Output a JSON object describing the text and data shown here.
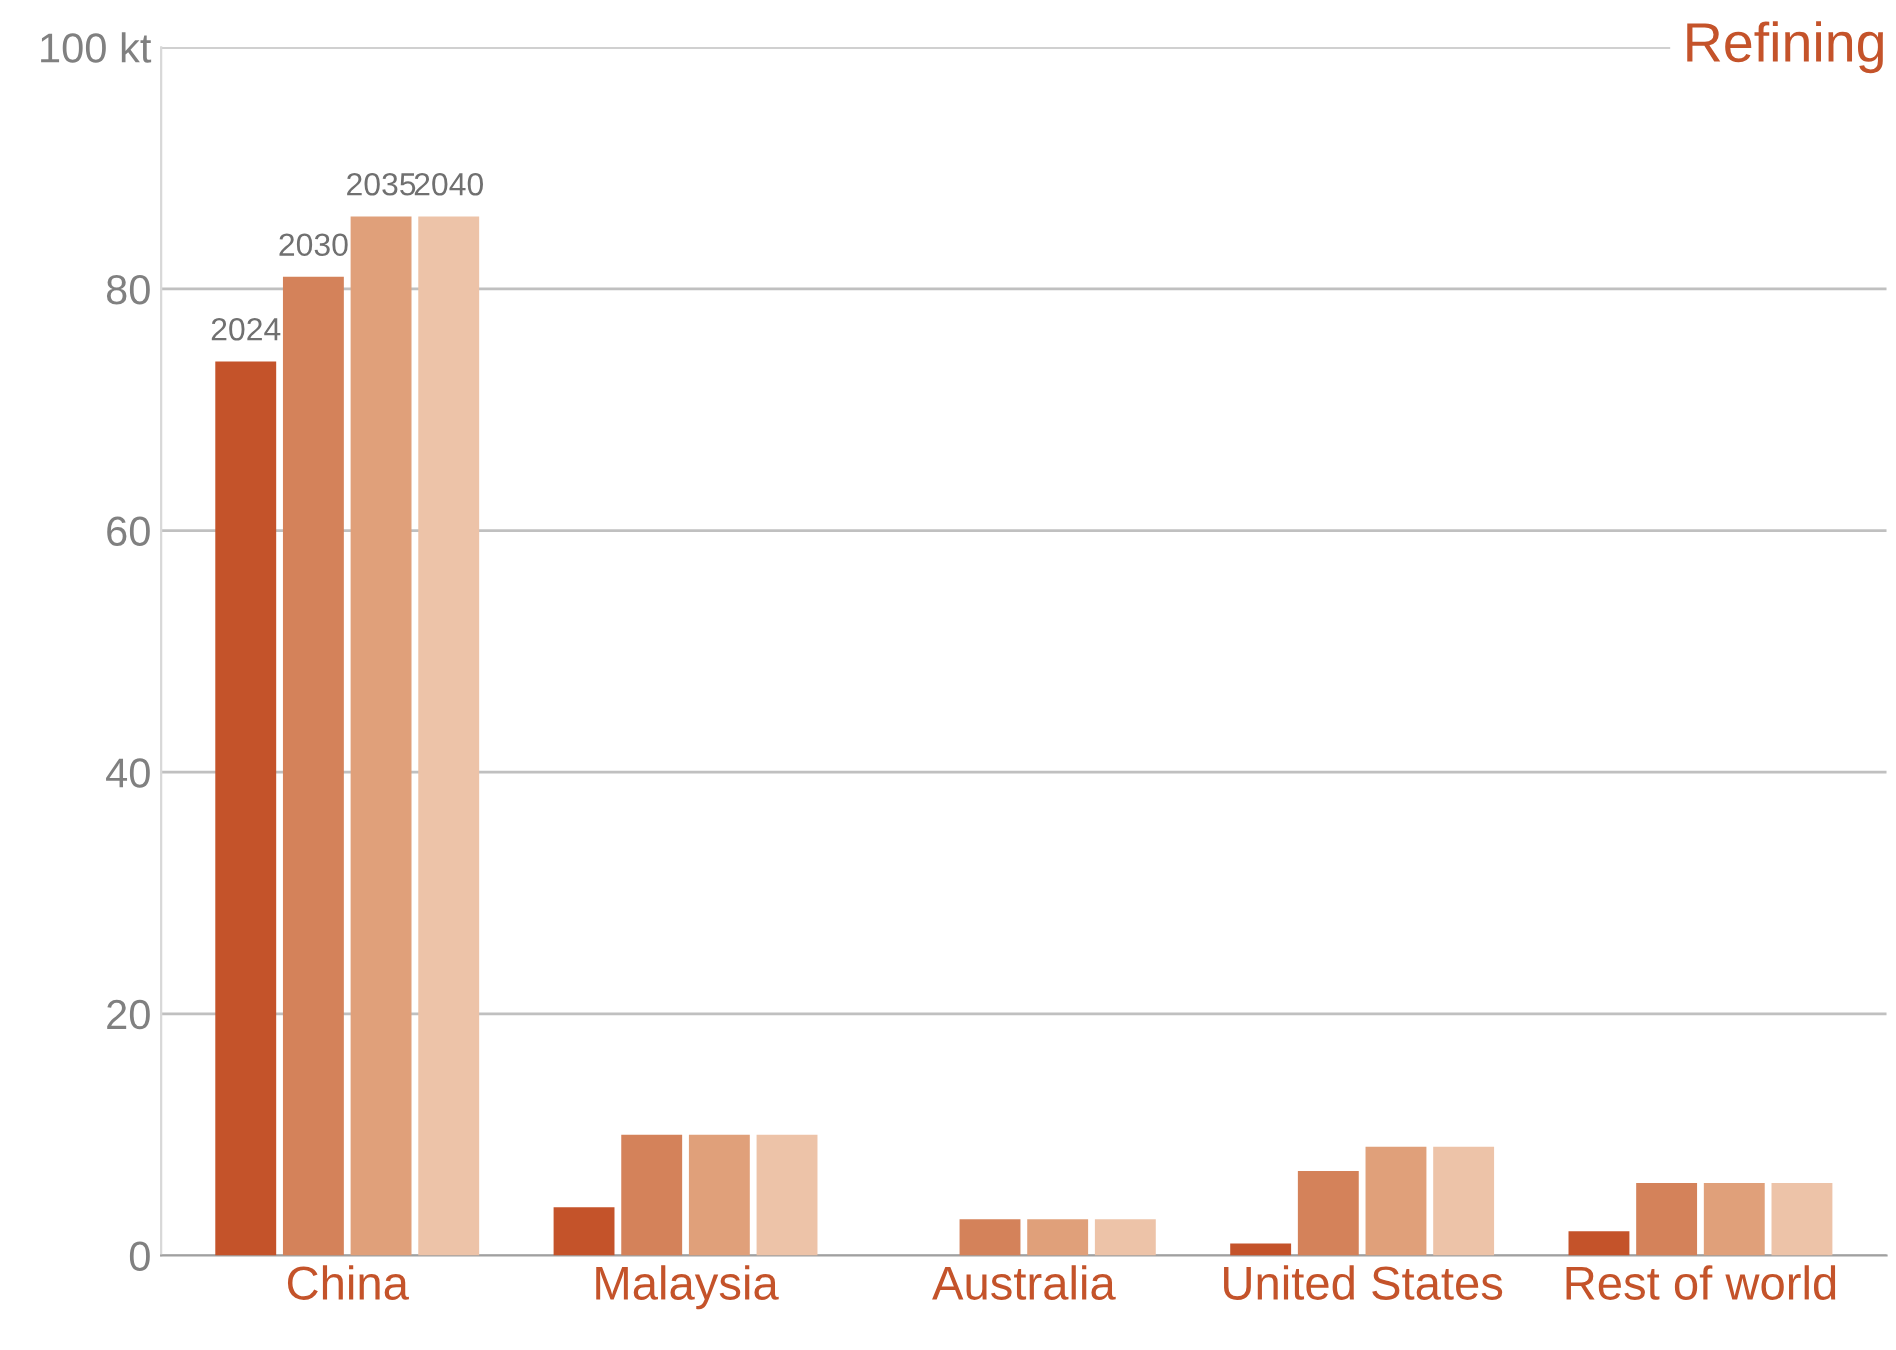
{
  "chart_data": {
    "type": "bar",
    "title": "Refining",
    "categories": [
      "China",
      "Malaysia",
      "Australia",
      "United States",
      "Rest of world"
    ],
    "series": [
      {
        "name": "2024",
        "color": "#c4532a",
        "values": [
          74,
          4,
          null,
          1,
          2
        ]
      },
      {
        "name": "2030",
        "color": "#d4825a",
        "values": [
          81,
          10,
          3,
          7,
          6
        ]
      },
      {
        "name": "2035",
        "color": "#e0a07a",
        "values": [
          86,
          10,
          3,
          9,
          6
        ]
      },
      {
        "name": "2040",
        "color": "#edc3a8",
        "values": [
          86,
          10,
          3,
          9,
          6
        ]
      }
    ],
    "ylim": [
      0,
      100
    ],
    "yticks": [
      0,
      20,
      40,
      60,
      80,
      {
        "value": 100,
        "label": "100 kt"
      }
    ],
    "grid": "y",
    "legend": false
  }
}
